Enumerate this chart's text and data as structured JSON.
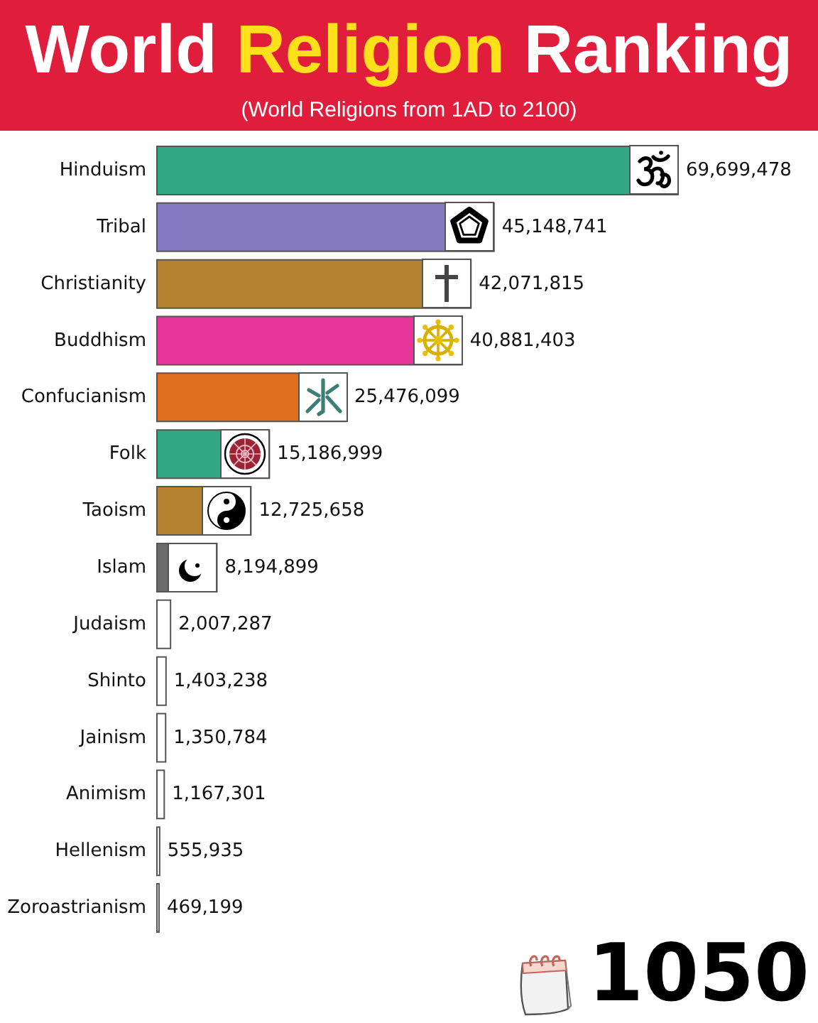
{
  "chart_data": {
    "type": "bar",
    "orientation": "horizontal",
    "title": "World Religion Ranking",
    "subtitle": "(World Religions from 1AD to 2100)",
    "categories": [
      "Hinduism",
      "Tribal",
      "Christianity",
      "Buddhism",
      "Confucianism",
      "Folk",
      "Taoism",
      "Islam",
      "Judaism",
      "Shinto",
      "Jainism",
      "Animism",
      "Hellenism",
      "Zoroastrianism"
    ],
    "values": [
      69699478,
      45148741,
      42071815,
      40881403,
      25476099,
      15186999,
      12725658,
      8194899,
      2007287,
      1403238,
      1350784,
      1167301,
      555935,
      469199
    ],
    "value_labels": [
      "69,699,478",
      "45,148,741",
      "42,071,815",
      "40,881,403",
      "25,476,099",
      "15,186,999",
      "12,725,658",
      "8,194,899",
      "2,007,287",
      "1,403,238",
      "1,350,784",
      "1,167,301",
      "555,935",
      "469,199"
    ],
    "colors": [
      "#30a882",
      "#8479c2",
      "#b5832f",
      "#e8359a",
      "#e06f1b",
      "#30a882",
      "#b5832f",
      "#6b6b6b",
      "#ffffff",
      "#ffffff",
      "#ffffff",
      "#ffffff",
      "#ffffff",
      "#ffffff"
    ],
    "annotations": [
      "1050"
    ]
  }
}
